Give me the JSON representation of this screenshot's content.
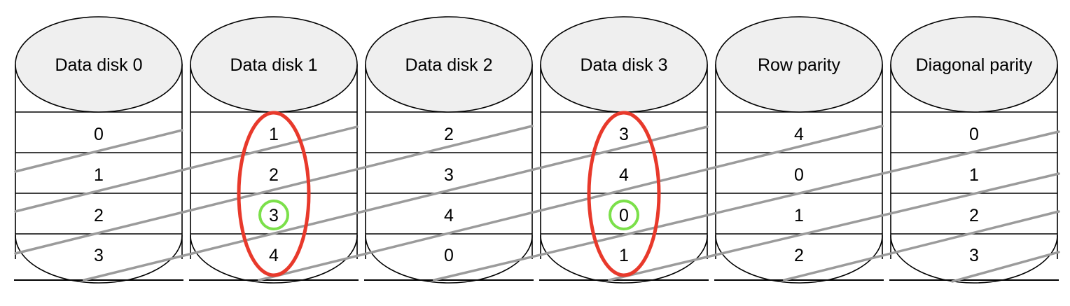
{
  "disks": [
    {
      "label": "Data disk 0",
      "cells": [
        "0",
        "1",
        "2",
        "3"
      ]
    },
    {
      "label": "Data disk 1",
      "cells": [
        "1",
        "2",
        "3",
        "4"
      ]
    },
    {
      "label": "Data disk 2",
      "cells": [
        "2",
        "3",
        "4",
        "0"
      ]
    },
    {
      "label": "Data disk 3",
      "cells": [
        "3",
        "4",
        "0",
        "1"
      ]
    },
    {
      "label": "Row parity",
      "cells": [
        "4",
        "0",
        "1",
        "2"
      ]
    },
    {
      "label": "Diagonal parity",
      "cells": [
        "0",
        "1",
        "2",
        "3"
      ]
    }
  ],
  "highlights": {
    "failed_disk_indices": [
      1,
      3
    ],
    "failed_color": "#e8392b",
    "recovered_cells": [
      {
        "disk": 1,
        "row": 2
      },
      {
        "disk": 3,
        "row": 2
      }
    ],
    "recovered_color": "#7be04a"
  },
  "colors": {
    "disk_top_fill": "#efefef",
    "outline": "#000000",
    "diagonal_line": "#9b9b9b"
  }
}
